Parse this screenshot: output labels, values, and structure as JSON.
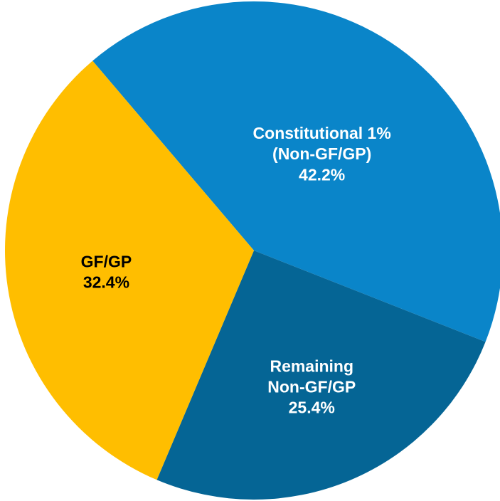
{
  "chart_data": {
    "type": "pie",
    "categories": [
      "Constitutional 1%\n(Non-GF/GP)",
      "Remaining\nNon-GF/GP",
      "GF/GP"
    ],
    "values": [
      42.2,
      25.4,
      32.4
    ],
    "value_labels": [
      "42.2%",
      "25.4%",
      "32.4%"
    ],
    "colors": [
      "#0a85c9",
      "#056595",
      "#ffbe00"
    ],
    "label_colors": [
      "#ffffff",
      "#ffffff",
      "#000000"
    ]
  }
}
